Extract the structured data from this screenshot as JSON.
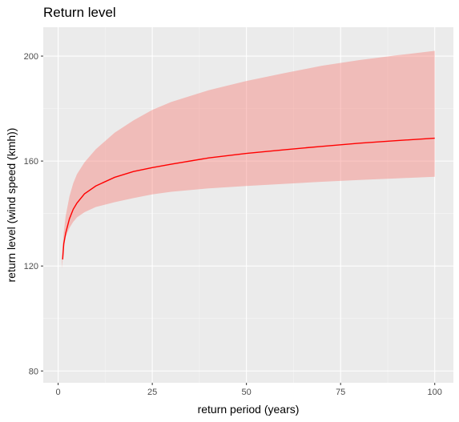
{
  "chart_data": {
    "type": "line",
    "title": "Return level",
    "xlabel": "return period (years)",
    "ylabel": "return level (wind speed (kmh))",
    "xlim": [
      -3.95,
      104.95
    ],
    "ylim": [
      75.5,
      211
    ],
    "x_ticks": [
      0,
      25,
      50,
      75,
      100
    ],
    "x_tick_labels": [
      "0",
      "25",
      "50",
      "75",
      "100"
    ],
    "y_ticks": [
      80,
      120,
      160,
      200
    ],
    "y_tick_labels": [
      "80",
      "120",
      "160",
      "200"
    ],
    "grid": true,
    "legend": "none",
    "colors": {
      "panel": "#ebebeb",
      "grid_major": "#ffffff",
      "grid_minor": "#f5f5f5",
      "line": "#ff0000",
      "band": "#f8766d",
      "band_opacity": 0.4
    },
    "series": [
      {
        "type": "ribbon",
        "x": [
          1,
          1.5,
          2,
          3,
          4,
          5,
          7,
          10,
          15,
          20,
          25,
          30,
          40,
          50,
          60,
          70,
          80,
          90,
          100
        ],
        "lower": [
          119,
          127,
          131,
          134.5,
          136.8,
          138.5,
          140.5,
          142.5,
          144.3,
          145.9,
          147.3,
          148.3,
          149.6,
          150.5,
          151.3,
          152.1,
          152.8,
          153.4,
          154
        ],
        "upper": [
          124,
          133,
          139,
          146.5,
          151.5,
          155,
          159.5,
          164.5,
          170.8,
          175.5,
          179.5,
          182.5,
          187,
          190.5,
          193.5,
          196.3,
          198.5,
          200.3,
          202
        ]
      },
      {
        "type": "line",
        "x": [
          1.2,
          1.5,
          2,
          3,
          4,
          5,
          7,
          10,
          15,
          20,
          25,
          30,
          40,
          50,
          60,
          70,
          80,
          90,
          100
        ],
        "values": [
          122.5,
          128.5,
          132.5,
          138,
          141.6,
          144,
          147.5,
          150.5,
          153.8,
          156,
          157.5,
          158.8,
          161.2,
          162.9,
          164.3,
          165.6,
          166.8,
          167.8,
          168.7
        ]
      }
    ]
  }
}
